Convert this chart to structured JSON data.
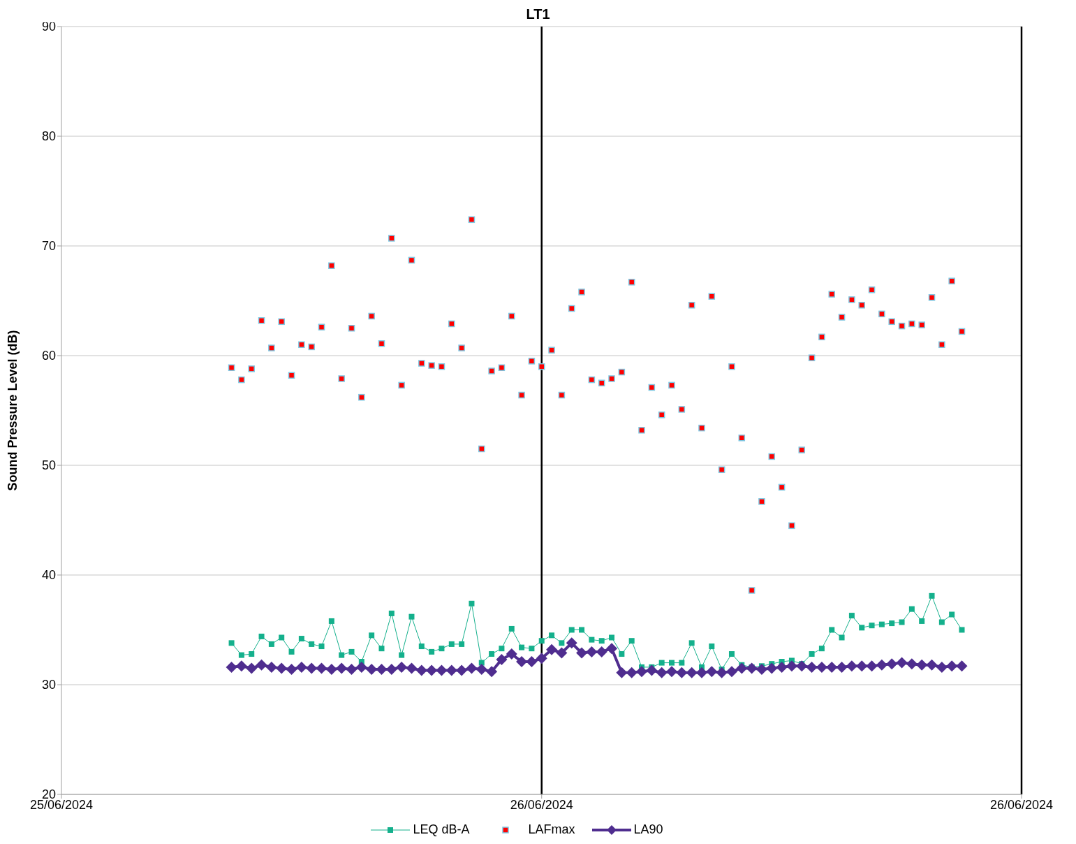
{
  "chart_data": {
    "type": "line",
    "title": "LT1",
    "ylabel": "Sound Pressure Level (dB)",
    "x": [
      "2024-06-25T08:30",
      "2024-06-25T09:00",
      "2024-06-25T09:30",
      "2024-06-25T10:00",
      "2024-06-25T10:30",
      "2024-06-25T11:00",
      "2024-06-25T11:30",
      "2024-06-25T12:00",
      "2024-06-25T12:30",
      "2024-06-25T13:00",
      "2024-06-25T13:30",
      "2024-06-25T14:00",
      "2024-06-25T14:30",
      "2024-06-25T15:00",
      "2024-06-25T15:30",
      "2024-06-25T16:00",
      "2024-06-25T16:30",
      "2024-06-25T17:00",
      "2024-06-25T17:30",
      "2024-06-25T18:00",
      "2024-06-25T18:30",
      "2024-06-25T19:00",
      "2024-06-25T19:30",
      "2024-06-25T20:00",
      "2024-06-25T20:30",
      "2024-06-25T21:00",
      "2024-06-25T21:30",
      "2024-06-25T22:00",
      "2024-06-25T22:30",
      "2024-06-25T23:00",
      "2024-06-25T23:30",
      "2024-06-26T00:00",
      "2024-06-26T00:30",
      "2024-06-26T01:00",
      "2024-06-26T01:30",
      "2024-06-26T02:00",
      "2024-06-26T02:30",
      "2024-06-26T03:00",
      "2024-06-26T03:30",
      "2024-06-26T04:00",
      "2024-06-26T04:30",
      "2024-06-26T05:00",
      "2024-06-26T05:30",
      "2024-06-26T06:00",
      "2024-06-26T06:30",
      "2024-06-26T07:00",
      "2024-06-26T07:30",
      "2024-06-26T08:00",
      "2024-06-26T08:30",
      "2024-06-26T09:00",
      "2024-06-26T09:30",
      "2024-06-26T10:00",
      "2024-06-26T10:30",
      "2024-06-26T11:00",
      "2024-06-26T11:30",
      "2024-06-26T12:00",
      "2024-06-26T12:30",
      "2024-06-26T13:00",
      "2024-06-26T13:30",
      "2024-06-26T14:00",
      "2024-06-26T14:30",
      "2024-06-26T15:00",
      "2024-06-26T15:30",
      "2024-06-26T16:00",
      "2024-06-26T16:30",
      "2024-06-26T17:00",
      "2024-06-26T17:30",
      "2024-06-26T18:00",
      "2024-06-26T18:30",
      "2024-06-26T19:00",
      "2024-06-26T19:30",
      "2024-06-26T20:00",
      "2024-06-26T20:30",
      "2024-06-26T21:00"
    ],
    "xlim": [
      "2024-06-25",
      "2024-06-26T23:59"
    ],
    "xticks": [
      {
        "value": "2024-06-25",
        "label": "25/06/2024"
      },
      {
        "value": "2024-06-26",
        "label": "26/06/2024"
      },
      {
        "value": "2024-06-26T23:59",
        "label": "26/06/2024"
      }
    ],
    "ylim": [
      20,
      90
    ],
    "yticks": [
      20,
      30,
      40,
      50,
      60,
      70,
      80,
      90
    ],
    "grid": "y",
    "legend": "bottom",
    "ref_lines": [
      {
        "axis": "x",
        "value": "2024-06-26",
        "color": "#000000"
      },
      {
        "axis": "x",
        "value": "2024-06-26T23:59",
        "color": "#000000"
      }
    ],
    "series": [
      {
        "name": "LEQ dB-A",
        "color": "#14b08c",
        "marker": "square",
        "values": [
          33.8,
          32.7,
          32.8,
          34.4,
          33.7,
          34.3,
          33.0,
          34.2,
          33.7,
          33.5,
          35.8,
          32.7,
          33.0,
          32.1,
          34.5,
          33.3,
          36.5,
          32.7,
          36.2,
          33.5,
          33.0,
          33.3,
          33.7,
          33.7,
          37.4,
          32.0,
          32.8,
          33.3,
          35.1,
          33.4,
          33.3,
          34.0,
          34.5,
          33.8,
          35.0,
          35.0,
          34.1,
          34.0,
          34.3,
          32.8,
          34.0,
          31.6,
          31.6,
          32.0,
          32.0,
          32.0,
          33.8,
          31.6,
          33.5,
          31.4,
          32.8,
          31.8,
          31.6,
          31.7,
          31.9,
          32.1,
          32.2,
          31.9,
          32.8,
          33.3,
          35.0,
          34.3,
          36.3,
          35.2,
          35.4,
          35.5,
          35.6,
          35.7,
          36.9,
          35.8,
          38.1,
          35.7,
          36.4,
          35.0
        ]
      },
      {
        "name": "LAFmax",
        "type": "scatter",
        "color": "#ff0000",
        "marker": "square",
        "values": [
          58.9,
          57.8,
          58.8,
          63.2,
          60.7,
          63.1,
          58.2,
          61.0,
          60.8,
          62.6,
          68.2,
          57.9,
          62.5,
          56.2,
          63.6,
          61.1,
          70.7,
          57.3,
          68.7,
          59.3,
          59.1,
          59.0,
          62.9,
          60.7,
          72.4,
          51.5,
          58.6,
          58.9,
          63.6,
          56.4,
          59.5,
          59.0,
          60.5,
          56.4,
          64.3,
          65.8,
          57.8,
          57.5,
          57.9,
          58.5,
          66.7,
          53.2,
          57.1,
          54.6,
          57.3,
          55.1,
          64.6,
          53.4,
          65.4,
          49.6,
          59.0,
          52.5,
          38.6,
          46.7,
          50.8,
          48.0,
          44.5,
          51.4,
          59.8,
          61.7,
          65.6,
          63.5,
          65.1,
          64.6,
          66.0,
          63.8,
          63.1,
          62.7,
          62.9,
          62.8,
          65.3,
          61.0,
          66.8,
          62.2
        ]
      },
      {
        "name": "LA90",
        "color": "#4f2d8f",
        "marker": "diamond",
        "values": [
          31.6,
          31.7,
          31.5,
          31.8,
          31.6,
          31.5,
          31.4,
          31.6,
          31.5,
          31.5,
          31.4,
          31.5,
          31.4,
          31.6,
          31.4,
          31.4,
          31.4,
          31.6,
          31.5,
          31.3,
          31.3,
          31.3,
          31.3,
          31.3,
          31.5,
          31.4,
          31.2,
          32.3,
          32.8,
          32.1,
          32.1,
          32.4,
          33.2,
          32.9,
          33.8,
          32.9,
          33.0,
          33.0,
          33.3,
          31.1,
          31.1,
          31.2,
          31.3,
          31.1,
          31.2,
          31.1,
          31.1,
          31.1,
          31.2,
          31.1,
          31.2,
          31.5,
          31.5,
          31.4,
          31.5,
          31.6,
          31.7,
          31.7,
          31.6,
          31.6,
          31.6,
          31.6,
          31.7,
          31.7,
          31.7,
          31.8,
          31.9,
          32.0,
          31.9,
          31.8,
          31.8,
          31.6,
          31.7,
          31.7
        ]
      }
    ]
  }
}
